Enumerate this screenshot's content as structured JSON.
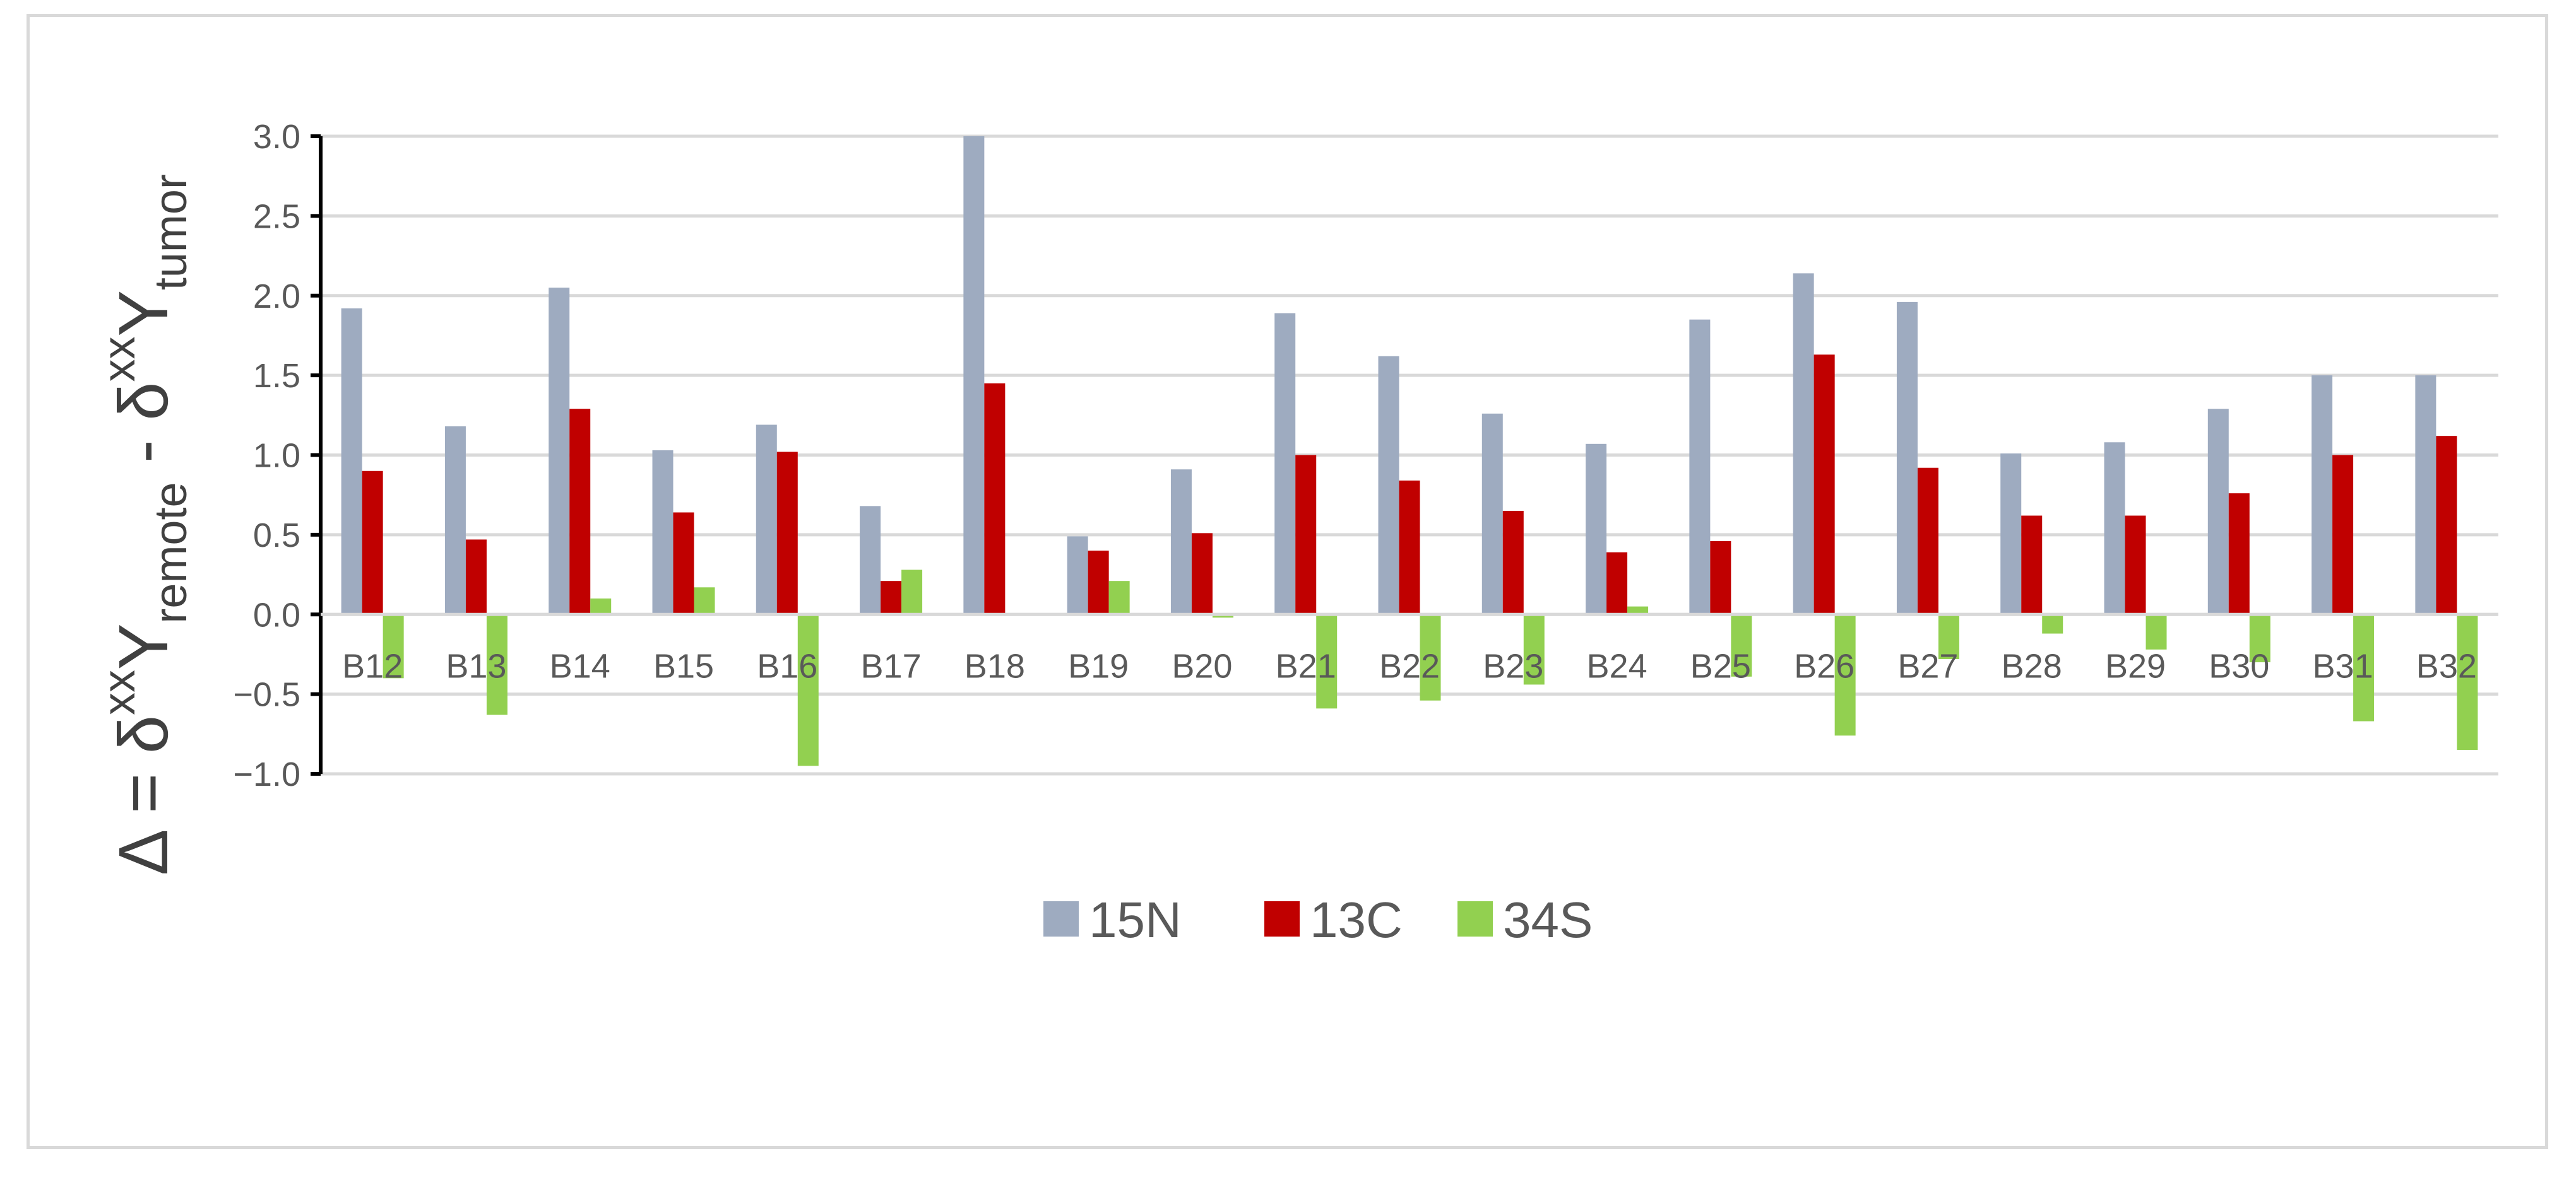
{
  "chart_data": {
    "type": "bar",
    "title": "",
    "xlabel": "",
    "ylabel": {
      "prefix": "Δ = δ",
      "sup1": "xx",
      "y1": "Y",
      "sub1": "remote",
      "mid": " - δ",
      "sup2": "xx",
      "y2": "Y",
      "sub2": "tumor"
    },
    "ylim": [
      -1.0,
      3.0
    ],
    "yticks": [
      3.0,
      2.5,
      2.0,
      1.5,
      1.0,
      0.5,
      0.0,
      -0.5,
      -1.0
    ],
    "ytick_labels": [
      "3.0",
      "2.5",
      "2.0",
      "1.5",
      "1.0",
      "0.5",
      "0.0",
      "−0.5",
      "−1.0"
    ],
    "grid": true,
    "legend_position": "bottom",
    "categories": [
      "B12",
      "B13",
      "B14",
      "B15",
      "B16",
      "B17",
      "B18",
      "B19",
      "B20",
      "B21",
      "B22",
      "B23",
      "B24",
      "B25",
      "B26",
      "B27",
      "B28",
      "B29",
      "B30",
      "B31",
      "B32"
    ],
    "series": [
      {
        "name": "15N",
        "color": "#9eabc0",
        "values": [
          1.92,
          1.18,
          2.05,
          1.03,
          1.19,
          0.68,
          3.0,
          0.49,
          0.91,
          1.89,
          1.62,
          1.26,
          1.07,
          1.85,
          2.14,
          1.96,
          1.01,
          1.08,
          1.29,
          1.5,
          1.5
        ]
      },
      {
        "name": "13C",
        "color": "#c00000",
        "values": [
          0.9,
          0.47,
          1.29,
          0.64,
          1.02,
          0.21,
          1.45,
          0.4,
          0.51,
          1.0,
          0.84,
          0.65,
          0.39,
          0.46,
          1.63,
          0.92,
          0.62,
          0.62,
          0.76,
          1.0,
          1.12
        ]
      },
      {
        "name": "34S",
        "color": "#92d050",
        "values": [
          -0.4,
          -0.63,
          0.1,
          0.17,
          -0.95,
          0.28,
          0.0,
          0.21,
          -0.02,
          -0.59,
          -0.54,
          -0.44,
          0.05,
          -0.39,
          -0.76,
          -0.28,
          -0.12,
          -0.22,
          -0.3,
          -0.67,
          -0.85
        ]
      }
    ]
  }
}
